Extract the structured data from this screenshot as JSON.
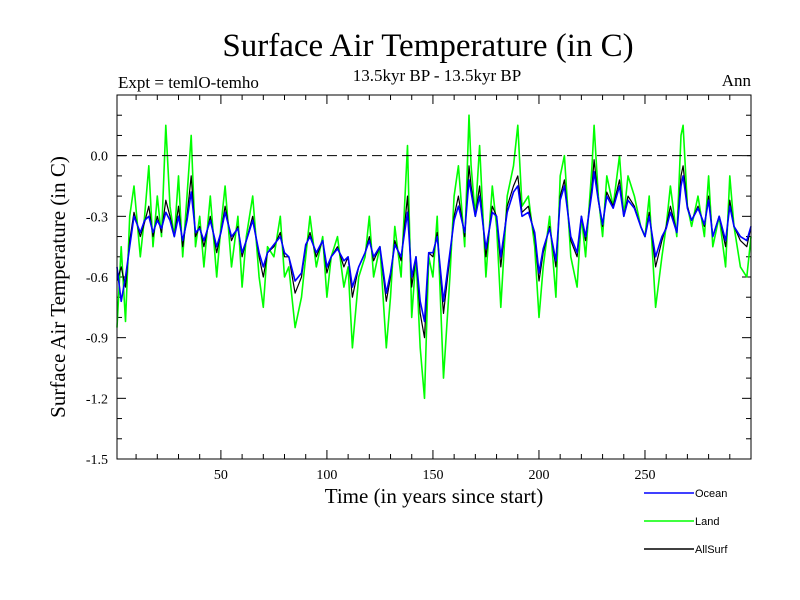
{
  "chart_data": {
    "type": "line",
    "title": "Surface Air Temperature (in C)",
    "subtitle_left": "Expt = temlO-temho",
    "subtitle_center": "13.5kyr BP - 13.5kyr BP",
    "subtitle_right": "Ann",
    "xlabel": "Time (in years since start)",
    "ylabel": "Surface Air Temperature (in C)",
    "xlim": [
      1,
      300
    ],
    "ylim": [
      -1.5,
      0.3
    ],
    "xticks": [
      50,
      100,
      150,
      200,
      250
    ],
    "yticks": [
      0.0,
      -0.3,
      -0.6,
      -0.9,
      -1.2,
      -1.5
    ],
    "ytick_labels": [
      "0.0",
      "-0.3",
      "-0.6",
      "-0.9",
      "-1.2",
      "-1.5"
    ],
    "reference_line": 0.0,
    "legend": [
      {
        "name": "Ocean",
        "color": "#0000ff"
      },
      {
        "name": "Land",
        "color": "#00ff00"
      },
      {
        "name": "AllSurf",
        "color": "#000000"
      }
    ],
    "series": [
      {
        "name": "Land",
        "color": "#00ff00",
        "x": [
          1,
          3,
          5,
          7,
          9,
          12,
          14,
          16,
          18,
          20,
          22,
          24,
          26,
          28,
          30,
          32,
          34,
          36,
          38,
          40,
          42,
          45,
          48,
          50,
          52,
          55,
          58,
          60,
          62,
          65,
          68,
          70,
          72,
          75,
          78,
          80,
          82,
          85,
          88,
          90,
          92,
          95,
          98,
          100,
          102,
          105,
          108,
          110,
          112,
          115,
          118,
          120,
          122,
          125,
          128,
          130,
          132,
          135,
          138,
          140,
          142,
          144,
          146,
          148,
          150,
          152,
          155,
          158,
          160,
          162,
          165,
          167,
          168,
          170,
          172,
          175,
          178,
          180,
          182,
          185,
          188,
          190,
          192,
          195,
          198,
          200,
          202,
          205,
          208,
          210,
          212,
          215,
          218,
          220,
          222,
          225,
          226,
          228,
          230,
          232,
          235,
          238,
          240,
          242,
          245,
          248,
          250,
          252,
          255,
          258,
          260,
          262,
          265,
          267,
          268,
          270,
          272,
          275,
          278,
          280,
          282,
          285,
          288,
          290,
          292,
          295,
          298,
          300
        ],
        "values": [
          -0.85,
          -0.45,
          -0.82,
          -0.3,
          -0.15,
          -0.5,
          -0.3,
          -0.05,
          -0.45,
          -0.2,
          -0.4,
          0.15,
          -0.25,
          -0.4,
          -0.1,
          -0.5,
          -0.2,
          0.1,
          -0.45,
          -0.3,
          -0.55,
          -0.2,
          -0.6,
          -0.35,
          -0.15,
          -0.55,
          -0.3,
          -0.65,
          -0.4,
          -0.2,
          -0.6,
          -0.75,
          -0.45,
          -0.5,
          -0.3,
          -0.6,
          -0.55,
          -0.85,
          -0.7,
          -0.5,
          -0.3,
          -0.55,
          -0.4,
          -0.7,
          -0.5,
          -0.4,
          -0.65,
          -0.55,
          -0.95,
          -0.6,
          -0.5,
          -0.3,
          -0.6,
          -0.45,
          -0.95,
          -0.7,
          -0.35,
          -0.6,
          0.05,
          -0.8,
          -0.5,
          -0.95,
          -1.2,
          -0.5,
          -0.6,
          -0.3,
          -1.1,
          -0.6,
          -0.2,
          -0.05,
          -0.45,
          0.2,
          -0.05,
          -0.3,
          0.05,
          -0.6,
          -0.15,
          -0.35,
          -0.75,
          -0.2,
          -0.05,
          0.15,
          -0.25,
          -0.2,
          -0.45,
          -0.8,
          -0.55,
          -0.3,
          -0.7,
          -0.1,
          0.0,
          -0.5,
          -0.65,
          -0.3,
          -0.5,
          -0.05,
          0.15,
          -0.2,
          -0.4,
          -0.1,
          -0.25,
          0.0,
          -0.3,
          -0.1,
          -0.2,
          -0.35,
          -0.4,
          -0.2,
          -0.75,
          -0.5,
          -0.35,
          -0.15,
          -0.4,
          0.1,
          0.15,
          -0.25,
          -0.35,
          -0.2,
          -0.4,
          -0.1,
          -0.45,
          -0.3,
          -0.55,
          -0.1,
          -0.35,
          -0.55,
          -0.6,
          -0.4
        ]
      },
      {
        "name": "AllSurf",
        "color": "#000000",
        "x": [
          1,
          3,
          5,
          7,
          9,
          12,
          14,
          16,
          18,
          20,
          22,
          24,
          26,
          28,
          30,
          32,
          34,
          36,
          38,
          40,
          42,
          45,
          48,
          50,
          52,
          55,
          58,
          60,
          62,
          65,
          68,
          70,
          72,
          75,
          78,
          80,
          82,
          85,
          88,
          90,
          92,
          95,
          98,
          100,
          102,
          105,
          108,
          110,
          112,
          115,
          118,
          120,
          122,
          125,
          128,
          130,
          132,
          135,
          138,
          140,
          142,
          144,
          146,
          148,
          150,
          152,
          155,
          158,
          160,
          162,
          165,
          167,
          168,
          170,
          172,
          175,
          178,
          180,
          182,
          185,
          188,
          190,
          192,
          195,
          198,
          200,
          202,
          205,
          208,
          210,
          212,
          215,
          218,
          220,
          222,
          225,
          226,
          228,
          230,
          232,
          235,
          238,
          240,
          242,
          245,
          248,
          250,
          252,
          255,
          258,
          260,
          262,
          265,
          267,
          268,
          270,
          272,
          275,
          278,
          280,
          282,
          285,
          288,
          290,
          292,
          295,
          298,
          300
        ],
        "values": [
          -0.62,
          -0.55,
          -0.65,
          -0.42,
          -0.28,
          -0.4,
          -0.33,
          -0.25,
          -0.4,
          -0.3,
          -0.38,
          -0.22,
          -0.3,
          -0.4,
          -0.25,
          -0.45,
          -0.3,
          -0.1,
          -0.4,
          -0.35,
          -0.45,
          -0.3,
          -0.48,
          -0.38,
          -0.25,
          -0.42,
          -0.35,
          -0.5,
          -0.42,
          -0.3,
          -0.5,
          -0.6,
          -0.48,
          -0.45,
          -0.38,
          -0.5,
          -0.5,
          -0.68,
          -0.6,
          -0.45,
          -0.38,
          -0.5,
          -0.42,
          -0.58,
          -0.5,
          -0.45,
          -0.55,
          -0.5,
          -0.7,
          -0.55,
          -0.48,
          -0.4,
          -0.52,
          -0.45,
          -0.72,
          -0.6,
          -0.42,
          -0.52,
          -0.2,
          -0.65,
          -0.5,
          -0.78,
          -0.9,
          -0.48,
          -0.5,
          -0.38,
          -0.78,
          -0.5,
          -0.3,
          -0.2,
          -0.4,
          -0.05,
          -0.15,
          -0.3,
          -0.15,
          -0.5,
          -0.25,
          -0.3,
          -0.55,
          -0.25,
          -0.15,
          -0.1,
          -0.28,
          -0.25,
          -0.4,
          -0.62,
          -0.48,
          -0.35,
          -0.55,
          -0.2,
          -0.12,
          -0.42,
          -0.5,
          -0.3,
          -0.42,
          -0.15,
          -0.02,
          -0.22,
          -0.35,
          -0.18,
          -0.25,
          -0.12,
          -0.3,
          -0.2,
          -0.25,
          -0.35,
          -0.4,
          -0.28,
          -0.55,
          -0.42,
          -0.35,
          -0.25,
          -0.38,
          -0.1,
          -0.05,
          -0.25,
          -0.32,
          -0.25,
          -0.35,
          -0.2,
          -0.4,
          -0.3,
          -0.45,
          -0.22,
          -0.35,
          -0.42,
          -0.45,
          -0.35
        ]
      },
      {
        "name": "Ocean",
        "color": "#0000ff",
        "x": [
          1,
          3,
          5,
          7,
          9,
          12,
          14,
          16,
          18,
          20,
          22,
          24,
          26,
          28,
          30,
          32,
          34,
          36,
          38,
          40,
          42,
          45,
          48,
          50,
          52,
          55,
          58,
          60,
          62,
          65,
          68,
          70,
          72,
          75,
          78,
          80,
          82,
          85,
          88,
          90,
          92,
          95,
          98,
          100,
          102,
          105,
          108,
          110,
          112,
          115,
          118,
          120,
          122,
          125,
          128,
          130,
          132,
          135,
          138,
          140,
          142,
          144,
          146,
          148,
          150,
          152,
          155,
          158,
          160,
          162,
          165,
          167,
          168,
          170,
          172,
          175,
          178,
          180,
          182,
          185,
          188,
          190,
          192,
          195,
          198,
          200,
          202,
          205,
          208,
          210,
          212,
          215,
          218,
          220,
          222,
          225,
          226,
          228,
          230,
          232,
          235,
          238,
          240,
          242,
          245,
          248,
          250,
          252,
          255,
          258,
          260,
          262,
          265,
          267,
          268,
          270,
          272,
          275,
          278,
          280,
          282,
          285,
          288,
          290,
          292,
          295,
          298,
          300
        ],
        "values": [
          -0.55,
          -0.72,
          -0.6,
          -0.45,
          -0.3,
          -0.38,
          -0.32,
          -0.3,
          -0.38,
          -0.32,
          -0.36,
          -0.28,
          -0.32,
          -0.4,
          -0.3,
          -0.42,
          -0.32,
          -0.18,
          -0.38,
          -0.36,
          -0.42,
          -0.32,
          -0.45,
          -0.38,
          -0.28,
          -0.4,
          -0.36,
          -0.48,
          -0.42,
          -0.32,
          -0.48,
          -0.55,
          -0.48,
          -0.44,
          -0.4,
          -0.48,
          -0.5,
          -0.62,
          -0.58,
          -0.44,
          -0.4,
          -0.48,
          -0.42,
          -0.55,
          -0.5,
          -0.46,
          -0.52,
          -0.5,
          -0.65,
          -0.55,
          -0.48,
          -0.42,
          -0.5,
          -0.45,
          -0.68,
          -0.58,
          -0.44,
          -0.5,
          -0.28,
          -0.6,
          -0.5,
          -0.72,
          -0.82,
          -0.48,
          -0.48,
          -0.4,
          -0.72,
          -0.48,
          -0.32,
          -0.25,
          -0.38,
          -0.12,
          -0.18,
          -0.3,
          -0.2,
          -0.46,
          -0.28,
          -0.3,
          -0.5,
          -0.28,
          -0.18,
          -0.15,
          -0.3,
          -0.28,
          -0.38,
          -0.58,
          -0.46,
          -0.36,
          -0.52,
          -0.22,
          -0.15,
          -0.4,
          -0.48,
          -0.3,
          -0.4,
          -0.18,
          -0.08,
          -0.22,
          -0.34,
          -0.2,
          -0.26,
          -0.15,
          -0.3,
          -0.22,
          -0.26,
          -0.35,
          -0.4,
          -0.3,
          -0.5,
          -0.4,
          -0.36,
          -0.28,
          -0.38,
          -0.15,
          -0.1,
          -0.26,
          -0.32,
          -0.26,
          -0.34,
          -0.22,
          -0.4,
          -0.3,
          -0.42,
          -0.25,
          -0.35,
          -0.4,
          -0.42,
          -0.35
        ]
      }
    ]
  }
}
